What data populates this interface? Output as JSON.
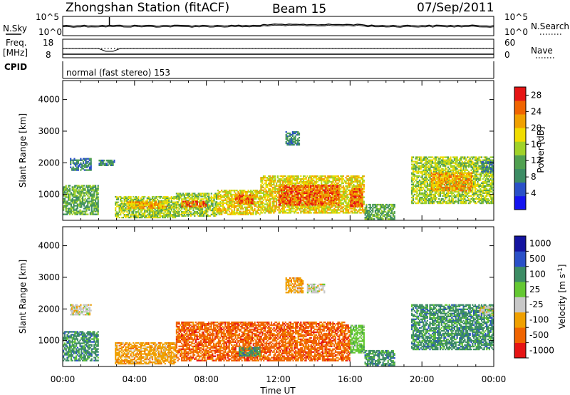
{
  "header": {
    "station": "Zhongshan Station (fitACF)",
    "beam": "Beam 15",
    "date": "07/Sep/2011"
  },
  "summary": {
    "nsky_label": "N.Sky",
    "nsearch_label": "N.Search",
    "noise_ticks": [
      "10^5",
      "10^0"
    ],
    "freq_label_1": "Freq.",
    "freq_label_2": "[MHz]",
    "freq_ticks": [
      "18",
      "8"
    ],
    "nave_label": "Nave",
    "nave_ticks": [
      "60",
      "0"
    ],
    "cpid_label": "CPID",
    "cpid_value": "normal (fast stereo) 153"
  },
  "colors": {
    "power": [
      "#1414f0",
      "#2a50c8",
      "#3c8c64",
      "#50a050",
      "#a0d228",
      "#f0dc00",
      "#f0a000",
      "#f06400",
      "#e61414"
    ],
    "velocity": [
      "#e61414",
      "#f06400",
      "#f0a000",
      "#c8c8c8",
      "#64c832",
      "#3c8c64",
      "#2a50c8",
      "#1414a0"
    ]
  },
  "chart_data": [
    {
      "type": "heatmap",
      "panel": "power",
      "ylabel": "Slant Range [km]",
      "ylim": [
        180,
        4600
      ],
      "yticks": [
        "1000",
        "2000",
        "3000",
        "4000"
      ],
      "xlim_hours": [
        0,
        24
      ],
      "colorbar_label": "Power [dB]",
      "colorbar_ticks": [
        "4",
        "8",
        "12",
        "16",
        "20",
        "24",
        "28"
      ],
      "colorbar_range": [
        0,
        30
      ],
      "regions": [
        {
          "t0": 0.0,
          "t1": 2.0,
          "r0": 350,
          "r1": 1300,
          "v": 10
        },
        {
          "t0": 0.4,
          "t1": 1.6,
          "r0": 1750,
          "r1": 2150,
          "v": 6
        },
        {
          "t0": 2.0,
          "t1": 2.9,
          "r0": 1900,
          "r1": 2100,
          "v": 6
        },
        {
          "t0": 2.9,
          "t1": 6.3,
          "r0": 250,
          "r1": 950,
          "v": 14
        },
        {
          "t0": 3.6,
          "t1": 5.8,
          "r0": 550,
          "r1": 780,
          "v": 22
        },
        {
          "t0": 6.3,
          "t1": 8.6,
          "r0": 300,
          "r1": 1050,
          "v": 16
        },
        {
          "t0": 6.6,
          "t1": 8.0,
          "r0": 600,
          "r1": 800,
          "v": 26
        },
        {
          "t0": 8.6,
          "t1": 11.0,
          "r0": 350,
          "r1": 1150,
          "v": 18
        },
        {
          "t0": 9.6,
          "t1": 10.6,
          "r0": 700,
          "r1": 1000,
          "v": 25
        },
        {
          "t0": 11.0,
          "t1": 16.8,
          "r0": 400,
          "r1": 1600,
          "v": 20
        },
        {
          "t0": 12.0,
          "t1": 15.4,
          "r0": 650,
          "r1": 1300,
          "v": 28
        },
        {
          "t0": 16.0,
          "t1": 16.7,
          "r0": 600,
          "r1": 1200,
          "v": 26
        },
        {
          "t0": 16.8,
          "t1": 18.5,
          "r0": 200,
          "r1": 700,
          "v": 10
        },
        {
          "t0": 12.4,
          "t1": 13.2,
          "r0": 2550,
          "r1": 3000,
          "v": 6
        },
        {
          "t0": 19.4,
          "t1": 24.0,
          "r0": 700,
          "r1": 2200,
          "v": 16
        },
        {
          "t0": 20.5,
          "t1": 22.8,
          "r0": 1100,
          "r1": 1700,
          "v": 22
        },
        {
          "t0": 23.3,
          "t1": 24.0,
          "r0": 1700,
          "r1": 2050,
          "v": 6
        }
      ]
    },
    {
      "type": "heatmap",
      "panel": "velocity",
      "ylabel": "Slant Range [km]",
      "ylim": [
        180,
        4600
      ],
      "yticks": [
        "1000",
        "2000",
        "3000",
        "4000"
      ],
      "xlim_hours": [
        0,
        24
      ],
      "xticks": [
        "00:00",
        "04:00",
        "08:00",
        "12:00",
        "16:00",
        "20:00",
        "00:00"
      ],
      "xlabel": "Time UT",
      "colorbar_label": "Velocity [m s^-1]",
      "colorbar_ticks": [
        "1000",
        "500",
        "100",
        "25",
        "-25",
        "-100",
        "-500",
        "-1000"
      ],
      "regions": [
        {
          "t0": 0.0,
          "t1": 2.0,
          "r0": 350,
          "r1": 1300,
          "v": 5
        },
        {
          "t0": 0.4,
          "t1": 1.6,
          "r0": 1800,
          "r1": 2150,
          "v": 3
        },
        {
          "t0": 2.9,
          "t1": 6.3,
          "r0": 250,
          "r1": 950,
          "v": 2
        },
        {
          "t0": 6.3,
          "t1": 16.0,
          "r0": 350,
          "r1": 1600,
          "v": 1
        },
        {
          "t0": 9.8,
          "t1": 11.0,
          "r0": 500,
          "r1": 800,
          "v": 5
        },
        {
          "t0": 16.0,
          "t1": 16.8,
          "r0": 600,
          "r1": 1500,
          "v": 4
        },
        {
          "t0": 16.8,
          "t1": 18.5,
          "r0": 200,
          "r1": 700,
          "v": 5
        },
        {
          "t0": 12.4,
          "t1": 13.4,
          "r0": 2500,
          "r1": 3000,
          "v": 2
        },
        {
          "t0": 13.6,
          "t1": 14.6,
          "r0": 2500,
          "r1": 2800,
          "v": 3
        },
        {
          "t0": 19.4,
          "t1": 24.0,
          "r0": 700,
          "r1": 2150,
          "v": 5
        },
        {
          "t0": 23.2,
          "t1": 24.0,
          "r0": 1800,
          "r1": 2100,
          "v": 3
        }
      ]
    }
  ]
}
